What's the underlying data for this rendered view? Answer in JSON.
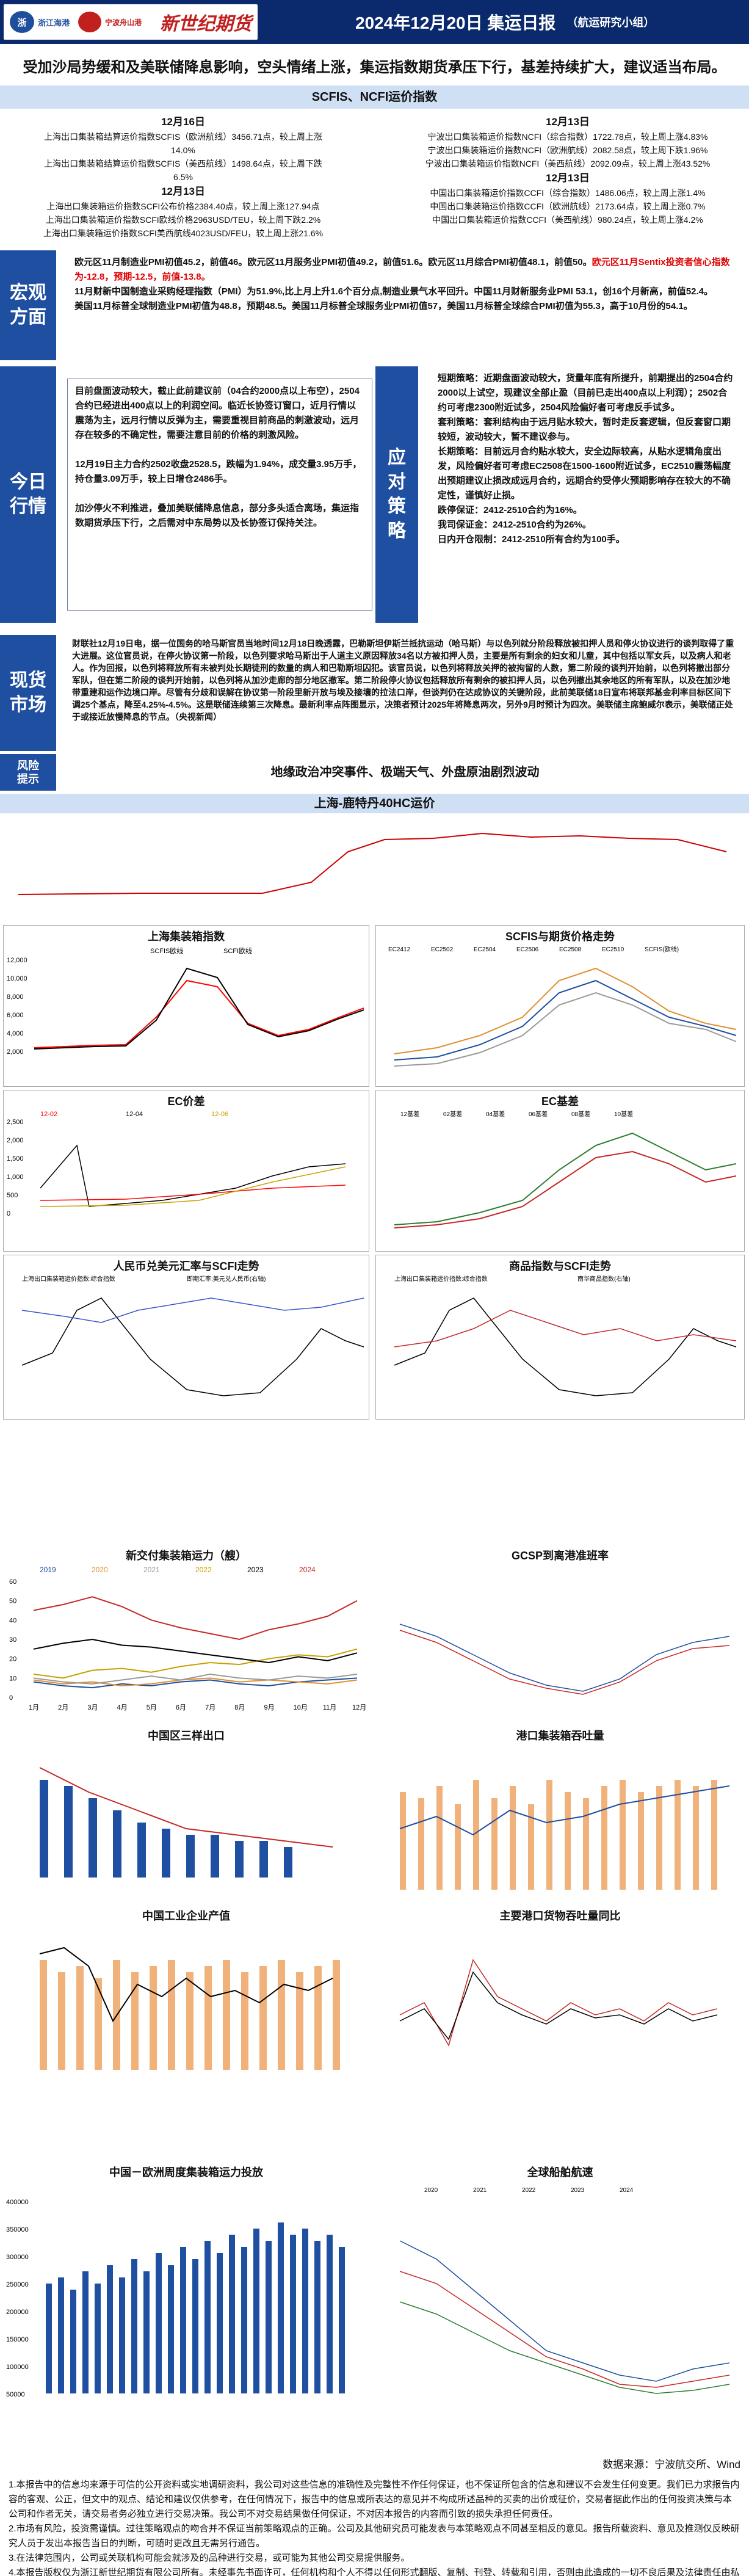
{
  "header": {
    "logo1": "浙江海港",
    "logo2": "宁波舟山港",
    "logo3": "新世纪期货",
    "title": "2024年12月20日 集运日报",
    "group": "（航运研究小组）"
  },
  "headline": "受加沙局势缓和及美联储降息影响，空头情绪上涨，集运指数期货承压下行，基差持续扩大，建议适当布局。",
  "index_band": "SCFIS、NCFI运价指数",
  "scfis": {
    "date": "12月16日",
    "lines": [
      "上海出口集装箱结算运价指数SCFIS（欧洲航线）3456.71点，较上周上涨14.0%",
      "上海出口集装箱结算运价指数SCFIS（美西航线）1498.64点，较上周下跌6.5%"
    ],
    "scfi_date": "12月13日",
    "scfi_lines": [
      "上海出口集装箱运价指数SCFI公布价格2384.40点，较上周上涨127.94点",
      "上海出口集装箱运价指数SCFI欧线价格2963USD/TEU，较上周下跌2.2%",
      "上海出口集装箱运价指数SCFI美西航线4023USD/FEU，较上周上涨21.6%"
    ]
  },
  "ncfi": {
    "date": "12月13日",
    "lines": [
      "宁波出口集装箱运价指数NCFI（综合指数）1722.78点，较上周上涨4.83%",
      "宁波出口集装箱运价指数NCFI（欧洲航线）2082.58点，较上周下跌1.96%",
      "宁波出口集装箱运价指数NCFI（美西航线）2092.09点，较上周上涨43.52%"
    ],
    "date2": "12月13日",
    "lines2": [
      "中国出口集装箱运价指数CCFI（综合指数）1486.06点，较上周上涨1.4%",
      "中国出口集装箱运价指数CCFI（欧洲航线）2173.64点，较上周上涨0.7%",
      "中国出口集装箱运价指数CCFI（美西航线）980.24点，较上周上涨4.2%"
    ]
  },
  "macro": {
    "label": "宏观方面",
    "p1a": "欧元区11月制造业PMI初值45.2，前值46。欧元区11月服务业PMI初值49.2，前值51.6。欧元区11月综合PMI初值48.1，前值50。",
    "p1red": "欧元区11月Sentix投资者信心指数为-12.8，预期-12.5，前值-13.8。",
    "p2": "11月财新中国制造业采购经理指数（PMI）为51.9%,比上月上升1.6个百分点,制造业景气水平回升。中国11月财新服务业PMI 53.1，创16个月新高，前值52.4。",
    "p3": "美国11月标普全球制造业PMI初值为48.8，预期48.5。美国11月标普全球服务业PMI初值57，美国11月标普全球综合PMI初值为55.3，高于10月份的54.1。"
  },
  "today": {
    "label": "今日行情",
    "p1": "目前盘面波动较大，截止此前建议前（04合约2000点以上布空），2504合约已经进出400点以上的利润空间。临近长协签订窗口，近月行情以震荡为主，远月行情以反弹为主，需要重视目前商品的刺激波动，远月存在较多的不确定性，需要注意目前的价格的刺激风险。",
    "p2": "12月19日主力合约2502收盘2528.5，跌幅为1.94%，成交量3.95万手，持仓量3.09万手，较上日增仓2486手。",
    "p3": "加沙停火不利推进，叠加美联储降息信息，部分多头适合离场，集运指数期货承压下行，之后需对中东局势以及长协签订保持关注。"
  },
  "strategy": {
    "label": "应对策略",
    "lines": [
      "短期策略：近期盘面波动较大，货量年底有所提升，前期提出的2504合约2000以上试空，现建议全部止盈（目前已走出400点以上利润）；2502合约可考虑2300附近试多，2504风险偏好者可考虑反手试多。",
      "套利策略：套利结构由于远月贴水较大，暂时走反套逻辑，但反套窗口期较短，波动较大，暂不建议参与。",
      "长期策略：目前远月合约贴水较大，安全边际较高，从贴水逻辑角度出发，风险偏好者可考虑EC2508在1500-1600附近试多，EC2510震荡幅度出预期建议止损改成远月合约，远期合约受停火预期影响存在较大的不确定性，谨慎好止损。",
      "跌停保证：2412-2510合约为16%。",
      "我司保证金：2412-2510合约为26%。",
      "日内开仓限制：2412-2510所有合约为100手。"
    ]
  },
  "spot": {
    "label": "现货市场",
    "text": "财联社12月19日电，据一位国务的哈马斯官员当地时间12月18日晚透露，巴勒斯坦伊斯兰抵抗运动（哈马斯）与以色列就分阶段释放被扣押人员和停火协议进行的谈判取得了重大进展。这位官员说，在停火协议第一阶段，以色列要求哈马斯出于人道主义原因释放34名以方被扣押人员，主要是所有剩余的妇女和儿童，其中包括以军女兵，以及病人和老人。作为回报，以色列将释放所有未被判处长期徒刑的数量的病人和巴勒斯坦囚犯。该官员说，以色列将释放关押的被拘留的人数，第二阶段的谈判开始前，以色列将撤出部分军队，但在第二阶段的谈判开始前，以色列将从加沙走廊的部分地区撤军。第二阶段停火协议包括释放所有剩余的被扣押人员，以色列撤出其余地区的所有军队，以及在加沙地带重建和运作边境口岸。尽管有分歧和误解在协议第一阶段里新开放与埃及接壤的拉法口岸，但谈判仍在达成协议的关键阶段，此前美联储18日宣布将联邦基金利率目标区间下调25个基点，降至4.25%-4.5%。这是联储连续第三次降息。最新利率点阵图显示，决策者预计2025年将降息两次，另外9月时预计为四次。美联储主席鲍威尔表示，美联储正处于或接近放慢降息的节点。（央视新闻）"
  },
  "risk": {
    "label": "风险提示",
    "text": "地缘政治冲突事件、极端天气、外盘原油剧烈波动"
  },
  "charts": {
    "c0": {
      "title": "上海-鹿特丹40HC运价"
    },
    "c1": {
      "title": "上海集装箱指数",
      "legend": [
        "SCFIS欧线",
        "SCFI欧线"
      ],
      "yticks": [
        "12,000",
        "10,000",
        "8,000",
        "6,000",
        "4,000",
        "2,000",
        "0"
      ]
    },
    "c2": {
      "title": "SCFIS与期货价格走势",
      "legend": [
        "EC2412",
        "EC2502",
        "EC2504",
        "EC2506",
        "EC2508",
        "EC2510",
        "SCFIS(欧线)"
      ]
    },
    "c3": {
      "title": "EC价差",
      "legend": [
        "12-02",
        "12-04",
        "12-06"
      ],
      "yticks": [
        "2,500",
        "2,000",
        "1,500",
        "1,000",
        "500",
        "0",
        "-500",
        "-1,000"
      ]
    },
    "c4": {
      "title": "EC基差",
      "legend": [
        "12基差",
        "02基差",
        "04基差",
        "06基差",
        "08基差",
        "10基差"
      ]
    },
    "c5": {
      "title": "人民币兑美元汇率与SCFI走势",
      "legend": [
        "上海出口集装箱运价指数:综合指数",
        "即期汇率:美元兑人民币(右轴)"
      ]
    },
    "c6": {
      "title": "商品指数与SCFI走势",
      "legend": [
        "上海出口集装箱运价指数:综合指数",
        "南华商品指数(右轴)"
      ]
    },
    "c7": {
      "title": "新交付集装箱运力（艘）",
      "legend": [
        "2019",
        "2020",
        "2021",
        "2022",
        "2023",
        "2024"
      ],
      "yticks": [
        "60",
        "50",
        "40",
        "30",
        "20",
        "10",
        "0"
      ],
      "xticks": [
        "1月",
        "2月",
        "3月",
        "4月",
        "5月",
        "6月",
        "7月",
        "8月",
        "9月",
        "10月",
        "11月",
        "12月"
      ],
      "series": [
        {
          "name": "2019",
          "values": [
            8,
            6,
            5,
            7,
            6,
            8,
            9,
            7,
            6,
            8,
            9,
            10
          ]
        },
        {
          "name": "2020",
          "values": [
            9,
            7,
            8,
            6,
            7,
            9,
            10,
            8,
            9,
            8,
            7,
            9
          ]
        },
        {
          "name": "2021",
          "values": [
            10,
            8,
            7,
            9,
            11,
            9,
            12,
            10,
            9,
            11,
            10,
            12
          ]
        },
        {
          "name": "2022",
          "values": [
            12,
            10,
            14,
            15,
            13,
            16,
            18,
            17,
            20,
            22,
            21,
            25
          ]
        },
        {
          "name": "2023",
          "values": [
            25,
            28,
            30,
            27,
            26,
            24,
            22,
            20,
            18,
            21,
            19,
            23
          ]
        },
        {
          "name": "2024",
          "values": [
            45,
            48,
            52,
            47,
            40,
            36,
            33,
            30,
            35,
            38,
            42,
            50
          ]
        }
      ]
    },
    "c8": {
      "title": "GCSP到离港准班率"
    },
    "c9": {
      "title": "中国区三样出口"
    },
    "c10": {
      "title": "港口集装箱吞吐量"
    },
    "c11": {
      "title": "中国工业企业产值"
    },
    "c12": {
      "title": "主要港口货物吞吐量同比"
    },
    "c13": {
      "title": "中国－欧洲周度集装箱运力投放",
      "yticks": [
        "400000",
        "350000",
        "300000",
        "250000",
        "200000",
        "150000",
        "100000",
        "50000",
        "0"
      ]
    },
    "c14": {
      "title": "全球船舶航速",
      "legend": [
        "2020",
        "2021",
        "2022",
        "2023",
        "2024"
      ]
    }
  },
  "source": "数据来源：宁波航交所、Wind",
  "disclaimer": [
    "1.本报告中的信息均来源于可信的公开资料或实地调研资料，我公司对这些信息的准确性及完整性不作任何保证，也不保证所包含的信息和建议不会发生任何变更。我们已力求报告内容的客观、公正，但文中的观点、结论和建议仅供参考，在任何情况下，报告中的信息或所表达的意见并不构成所述品种的买卖的出价或征价，交易者据此作出的任何投资决策与本公司和作者无关，请交易者务必独立进行交易决策。我公司不对交易结果做任何保证，不对因本报告的内容而引致的损失承担任何责任。",
    "2.市场有风险，投资需谨慎。过往策略观点的吻合并不保证当前策略观点的正确。公司及其他研究员可能发表与本策略观点不同甚至相反的意见。报告所载资料、意见及推测仅反映研究人员于发出本报告当日的判断，可随时更改且无需另行通告。",
    "3.在法律范围内，公司或关联机构可能会就涉及的品种进行交易，或可能为其他公司交易提供服务。",
    "4.本报告版权仅为浙江新世纪期货有限公司所有。未经事先书面许可，任何机构和个人不得以任何形式翻版、复制、刊登、转载和引用，否则由此造成的一切不良后果及法律责任由私自翻版、复制、刊登、转载和引用者承担。"
  ]
}
